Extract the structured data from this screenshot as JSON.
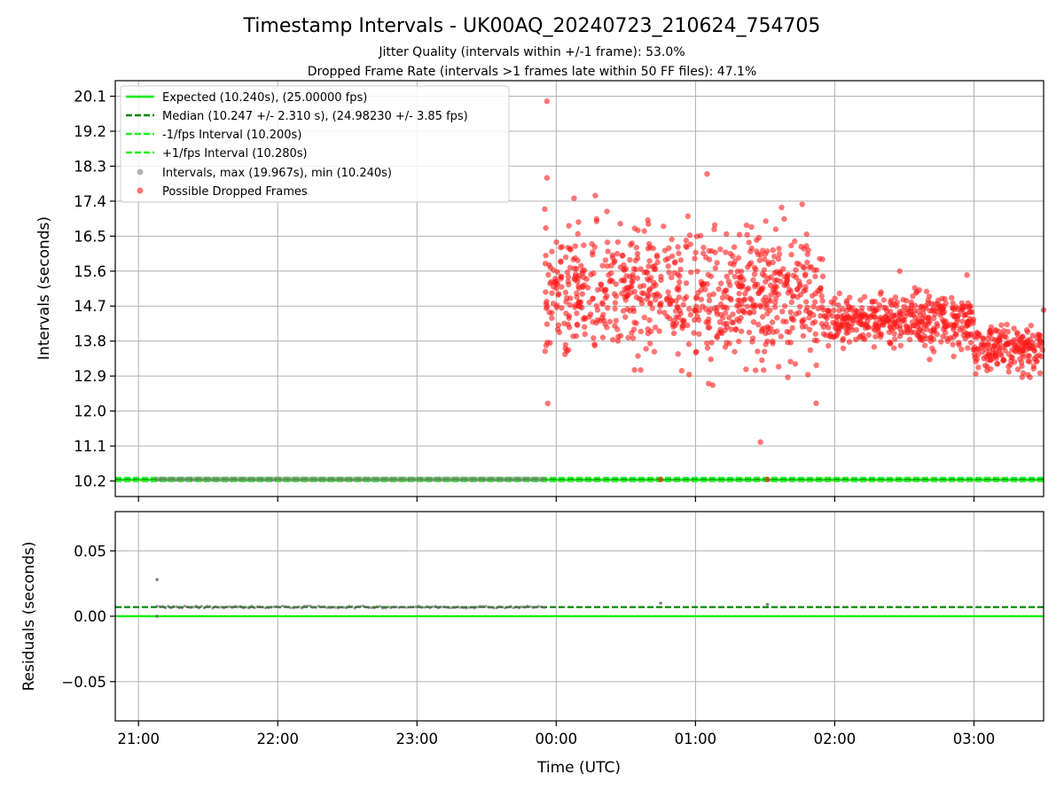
{
  "figure": {
    "title": "Timestamp Intervals - UK00AQ_20240723_210624_754705",
    "subtitle_jitter": "Jitter Quality (intervals within +/-1 frame): 53.0%",
    "subtitle_dropped": "Dropped Frame Rate (intervals >1 frames late within 50 FF files): 47.1%"
  },
  "colors": {
    "expected": "#00ee00",
    "median": "#008000",
    "fps_interval": "#22ee22",
    "intervals": "#808080",
    "dropped": "#ff1a1a",
    "grid": "#b0b0b0"
  },
  "chart_data": [
    {
      "type": "scatter",
      "panel": "intervals",
      "ylabel": "Intervals (seconds)",
      "x_range": [
        "20:50",
        "03:30"
      ],
      "ylim": [
        9.8,
        20.5
      ],
      "yticks": [
        "10.2",
        "11.1",
        "12.0",
        "12.9",
        "13.8",
        "14.7",
        "15.6",
        "16.5",
        "17.4",
        "18.3",
        "19.2",
        "20.1"
      ],
      "grid": true,
      "legend_position": "upper-left",
      "legend": [
        {
          "label": "Expected (10.240s), (25.00000 fps)",
          "style": "solid-line"
        },
        {
          "label": "Median (10.247 +/- 2.310 s), (24.98230 +/- 3.85 fps)",
          "style": "dashed-line"
        },
        {
          "label": "-1/fps Interval (10.200s)",
          "style": "dashed-line"
        },
        {
          "label": "+1/fps Interval (10.280s)",
          "style": "dashed-line"
        },
        {
          "label": "Intervals, max (19.967s), min (10.240s)",
          "style": "marker"
        },
        {
          "label": "Possible Dropped Frames",
          "style": "marker"
        }
      ],
      "reference_lines": [
        {
          "name": "Expected",
          "y": 10.24
        },
        {
          "name": "Median",
          "y": 10.247
        },
        {
          "name": "-1/fps",
          "y": 10.2
        },
        {
          "name": "+1/fps",
          "y": 10.28
        }
      ],
      "series": [
        {
          "name": "Intervals, max (19.967s), min (10.240s)",
          "summary": {
            "x_start": "21:08",
            "x_end": "23:55",
            "y": 10.247
          }
        },
        {
          "name": "Possible Dropped Frames",
          "notable_points": [
            {
              "x": "23:56",
              "y": 19.97
            },
            {
              "x": "23:56",
              "y": 18.0
            },
            {
              "x": "01:05",
              "y": 18.1
            },
            {
              "x": "01:52",
              "y": 12.2
            },
            {
              "x": "01:28",
              "y": 11.2
            },
            {
              "x": "00:45",
              "y": 10.24
            },
            {
              "x": "01:31",
              "y": 10.24
            },
            {
              "x": "02:28",
              "y": 15.6
            },
            {
              "x": "02:57",
              "y": 15.5
            },
            {
              "x": "03:30",
              "y": 14.6
            }
          ],
          "segments": [
            {
              "x_start": "23:55",
              "x_end": "01:55",
              "y_center": 15.0,
              "y_spread": 1.3
            },
            {
              "x_start": "01:55",
              "x_end": "03:00",
              "y_center": 14.3,
              "y_spread": 0.55
            },
            {
              "x_start": "03:00",
              "x_end": "03:30",
              "y_center": 13.6,
              "y_spread": 0.45
            }
          ]
        }
      ]
    },
    {
      "type": "scatter",
      "panel": "residuals",
      "xlabel": "Time (UTC)",
      "ylabel": "Residuals (seconds)",
      "x_range": [
        "20:50",
        "03:30"
      ],
      "xticks": [
        "21:00",
        "22:00",
        "23:00",
        "00:00",
        "01:00",
        "02:00",
        "03:00"
      ],
      "ylim": [
        -0.08,
        0.08
      ],
      "yticks": [
        "−0.05",
        "0.00",
        "0.05"
      ],
      "grid": true,
      "reference_lines": [
        {
          "name": "Expected",
          "y": 0.0
        },
        {
          "name": "Median",
          "y": 0.007
        }
      ],
      "series": [
        {
          "name": "Residuals",
          "points": [
            {
              "x": "21:08",
              "y": 0.028
            },
            {
              "x": "21:08",
              "y": 0.0
            },
            {
              "x": "00:45",
              "y": 0.01
            },
            {
              "x": "01:31",
              "y": 0.009
            }
          ],
          "summary": {
            "x_start": "21:08",
            "x_end": "23:55",
            "y": 0.007
          }
        }
      ]
    }
  ]
}
